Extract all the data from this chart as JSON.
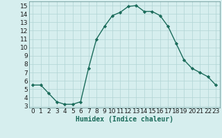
{
  "x": [
    0,
    1,
    2,
    3,
    4,
    5,
    6,
    7,
    8,
    9,
    10,
    11,
    12,
    13,
    14,
    15,
    16,
    17,
    18,
    19,
    20,
    21,
    22,
    23
  ],
  "y": [
    5.5,
    5.5,
    4.5,
    3.5,
    3.2,
    3.2,
    3.5,
    7.5,
    11.0,
    12.5,
    13.8,
    14.2,
    14.9,
    15.0,
    14.3,
    14.3,
    13.8,
    12.5,
    10.5,
    8.5,
    7.5,
    7.0,
    6.5,
    5.5
  ],
  "line_color": "#1a6b5a",
  "marker": "D",
  "marker_size": 2.2,
  "bg_color": "#d6eeee",
  "grid_color": "#b0d4d4",
  "xlabel": "Humidex (Indice chaleur)",
  "xlim": [
    -0.5,
    23.5
  ],
  "ylim": [
    2.8,
    15.5
  ],
  "xticks": [
    0,
    1,
    2,
    3,
    4,
    5,
    6,
    7,
    8,
    9,
    10,
    11,
    12,
    13,
    14,
    15,
    16,
    17,
    18,
    19,
    20,
    21,
    22,
    23
  ],
  "yticks": [
    3,
    4,
    5,
    6,
    7,
    8,
    9,
    10,
    11,
    12,
    13,
    14,
    15
  ],
  "xlabel_fontsize": 7,
  "tick_fontsize": 6.5
}
